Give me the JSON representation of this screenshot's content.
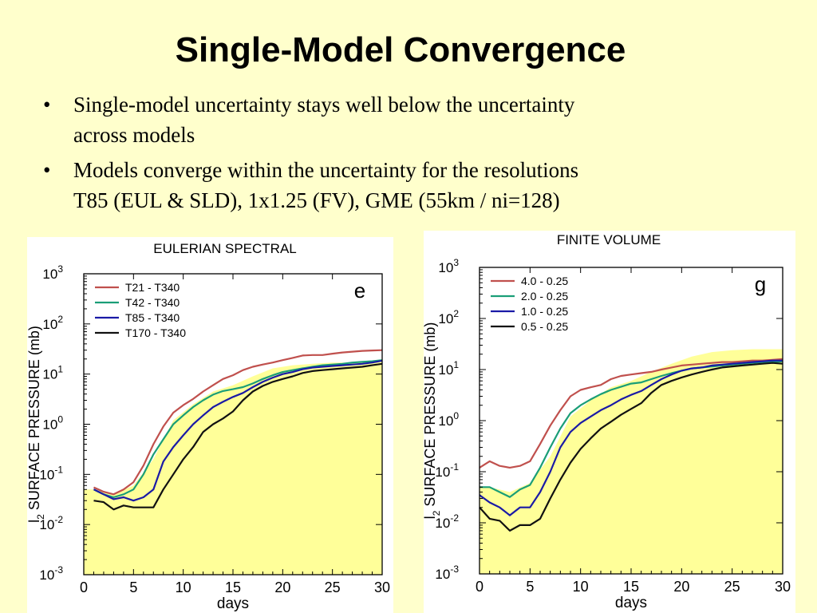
{
  "slide": {
    "title": "Single-Model Convergence",
    "bullets": [
      {
        "line1": "Single-model uncertainty stays well below the uncertainty",
        "line2": "across models"
      },
      {
        "line1": "Models converge within the uncertainty for the resolutions",
        "line2": "T85 (EUL & SLD), 1x1.25 (FV), GME (55km / ni=128)"
      }
    ],
    "bullet_glyph": "•"
  },
  "colors": {
    "background": "#ffffcc",
    "band": "#ffff99",
    "red": "#c0504d",
    "green": "#1a9e77",
    "blue": "#1a1aa6",
    "black": "#111111"
  },
  "chart_data": [
    {
      "type": "line",
      "title": "EULERIAN SPECTRAL",
      "panel_label": "e",
      "xlabel": "days",
      "ylabel_main": "l",
      "ylabel_sub": "2",
      "ylabel_rest": " SURFACE PRESSURE (mb)",
      "yscale": "log",
      "xlim": [
        0,
        30
      ],
      "ylim": [
        0.001,
        1000
      ],
      "xticks": [
        0,
        5,
        10,
        15,
        20,
        25,
        30
      ],
      "yticks": [
        {
          "base": "10",
          "exp": "-3"
        },
        {
          "base": "10",
          "exp": "-2"
        },
        {
          "base": "10",
          "exp": "-1"
        },
        {
          "base": "10",
          "exp": "0"
        },
        {
          "base": "10",
          "exp": "1"
        },
        {
          "base": "10",
          "exp": "2"
        },
        {
          "base": "10",
          "exp": "3"
        }
      ],
      "legend_position": "top-left",
      "band": {
        "x": [
          0,
          1,
          3,
          5,
          7,
          9,
          11,
          13,
          15,
          17,
          19,
          21,
          23,
          25,
          27,
          29,
          30
        ],
        "upper": [
          0.05,
          0.05,
          0.04,
          0.06,
          0.2,
          1.2,
          2.5,
          4.5,
          6,
          9,
          13,
          15,
          16,
          17,
          17,
          18,
          18
        ]
      },
      "x": [
        1,
        2,
        3,
        4,
        5,
        6,
        7,
        8,
        9,
        10,
        11,
        12,
        13,
        14,
        15,
        16,
        17,
        18,
        19,
        20,
        21,
        22,
        23,
        24,
        25,
        26,
        27,
        28,
        29,
        30
      ],
      "series": [
        {
          "name": "T21 - T340",
          "color": "#c0504d",
          "values": [
            0.055,
            0.045,
            0.04,
            0.05,
            0.07,
            0.15,
            0.4,
            0.9,
            1.7,
            2.4,
            3.2,
            4.5,
            6,
            8,
            9.5,
            12,
            14,
            15.5,
            17,
            19,
            21,
            23.5,
            24,
            24,
            25.5,
            27,
            28,
            29,
            29.5,
            30
          ]
        },
        {
          "name": "T42 - T340",
          "color": "#1a9e77",
          "values": [
            0.05,
            0.04,
            0.035,
            0.04,
            0.05,
            0.1,
            0.25,
            0.5,
            1.0,
            1.5,
            2.2,
            3.0,
            3.9,
            4.6,
            5.0,
            5.5,
            6.5,
            8,
            9.5,
            11,
            12,
            13,
            14,
            15,
            15.5,
            16,
            17,
            17.5,
            18,
            19
          ]
        },
        {
          "name": "T85 - T340",
          "color": "#1a1aa6",
          "values": [
            0.05,
            0.04,
            0.032,
            0.035,
            0.03,
            0.035,
            0.05,
            0.18,
            0.35,
            0.6,
            1.0,
            1.5,
            2.2,
            2.8,
            3.5,
            4.2,
            5.5,
            7,
            8.5,
            10,
            11,
            12.5,
            13.5,
            14,
            14.5,
            15,
            15.5,
            16,
            17,
            18.5
          ]
        },
        {
          "name": "T170 - T340",
          "color": "#111111",
          "values": [
            0.03,
            0.028,
            0.02,
            0.024,
            0.022,
            0.022,
            0.022,
            0.05,
            0.1,
            0.2,
            0.35,
            0.7,
            1.0,
            1.3,
            1.8,
            3.0,
            4.5,
            5.8,
            7,
            8,
            9,
            10.5,
            11.5,
            12,
            12.5,
            13,
            13.5,
            14,
            15,
            16
          ]
        }
      ]
    },
    {
      "type": "line",
      "title": "FINITE VOLUME",
      "panel_label": "g",
      "xlabel": "days",
      "ylabel_main": "l",
      "ylabel_sub": "2",
      "ylabel_rest": " SURFACE PRESSURE (mb)",
      "yscale": "log",
      "xlim": [
        0,
        30
      ],
      "ylim": [
        0.001,
        1000
      ],
      "xticks": [
        0,
        5,
        10,
        15,
        20,
        25,
        30
      ],
      "yticks": [
        {
          "base": "10",
          "exp": "-3"
        },
        {
          "base": "10",
          "exp": "-2"
        },
        {
          "base": "10",
          "exp": "-1"
        },
        {
          "base": "10",
          "exp": "0"
        },
        {
          "base": "10",
          "exp": "1"
        },
        {
          "base": "10",
          "exp": "2"
        },
        {
          "base": "10",
          "exp": "3"
        }
      ],
      "legend_position": "top-left",
      "band": {
        "x": [
          0,
          1,
          3,
          5,
          7,
          9,
          11,
          13,
          15,
          17,
          19,
          21,
          23,
          25,
          27,
          29,
          30
        ],
        "upper": [
          0.05,
          0.05,
          0.04,
          0.06,
          0.2,
          1.2,
          2.5,
          4.5,
          6,
          9,
          13,
          18,
          22,
          24,
          25,
          25,
          25
        ]
      },
      "x": [
        0,
        1,
        2,
        3,
        4,
        5,
        6,
        7,
        8,
        9,
        10,
        11,
        12,
        13,
        14,
        15,
        16,
        17,
        18,
        19,
        20,
        21,
        22,
        23,
        24,
        25,
        26,
        27,
        28,
        29,
        30
      ],
      "series": [
        {
          "name": "4.0 - 0.25",
          "color": "#c0504d",
          "values": [
            0.12,
            0.16,
            0.13,
            0.12,
            0.13,
            0.16,
            0.35,
            0.8,
            1.6,
            3.0,
            4.0,
            4.5,
            5.0,
            6.5,
            7.5,
            8,
            8.5,
            9,
            10,
            11,
            12,
            12.5,
            13,
            13.5,
            14,
            14,
            14.5,
            15,
            15,
            15.5,
            16
          ]
        },
        {
          "name": "2.0 - 0.25",
          "color": "#1a9e77",
          "values": [
            0.05,
            0.05,
            0.04,
            0.032,
            0.045,
            0.055,
            0.12,
            0.3,
            0.7,
            1.4,
            2.0,
            2.6,
            3.3,
            4.0,
            4.6,
            5.3,
            5.6,
            6.5,
            7.5,
            8.5,
            9.5,
            10.5,
            11,
            11.5,
            12,
            12.5,
            13,
            13.5,
            14,
            14,
            14.5
          ]
        },
        {
          "name": "1.0 - 0.25",
          "color": "#1a1aa6",
          "values": [
            0.035,
            0.025,
            0.02,
            0.014,
            0.02,
            0.02,
            0.04,
            0.1,
            0.3,
            0.6,
            0.9,
            1.2,
            1.6,
            2.0,
            2.6,
            3.2,
            3.8,
            5.0,
            6.5,
            8,
            9.5,
            10.5,
            11,
            12,
            12.5,
            13,
            13.5,
            14,
            14.5,
            15,
            15
          ]
        },
        {
          "name": "0.5 - 0.25",
          "color": "#111111",
          "values": [
            0.02,
            0.012,
            0.011,
            0.007,
            0.009,
            0.009,
            0.012,
            0.03,
            0.07,
            0.15,
            0.28,
            0.45,
            0.7,
            0.95,
            1.3,
            1.7,
            2.2,
            3.5,
            5.0,
            6.0,
            7.0,
            8.0,
            9.0,
            10,
            11,
            11.5,
            12,
            12.5,
            13,
            13.5,
            13
          ]
        }
      ]
    }
  ]
}
